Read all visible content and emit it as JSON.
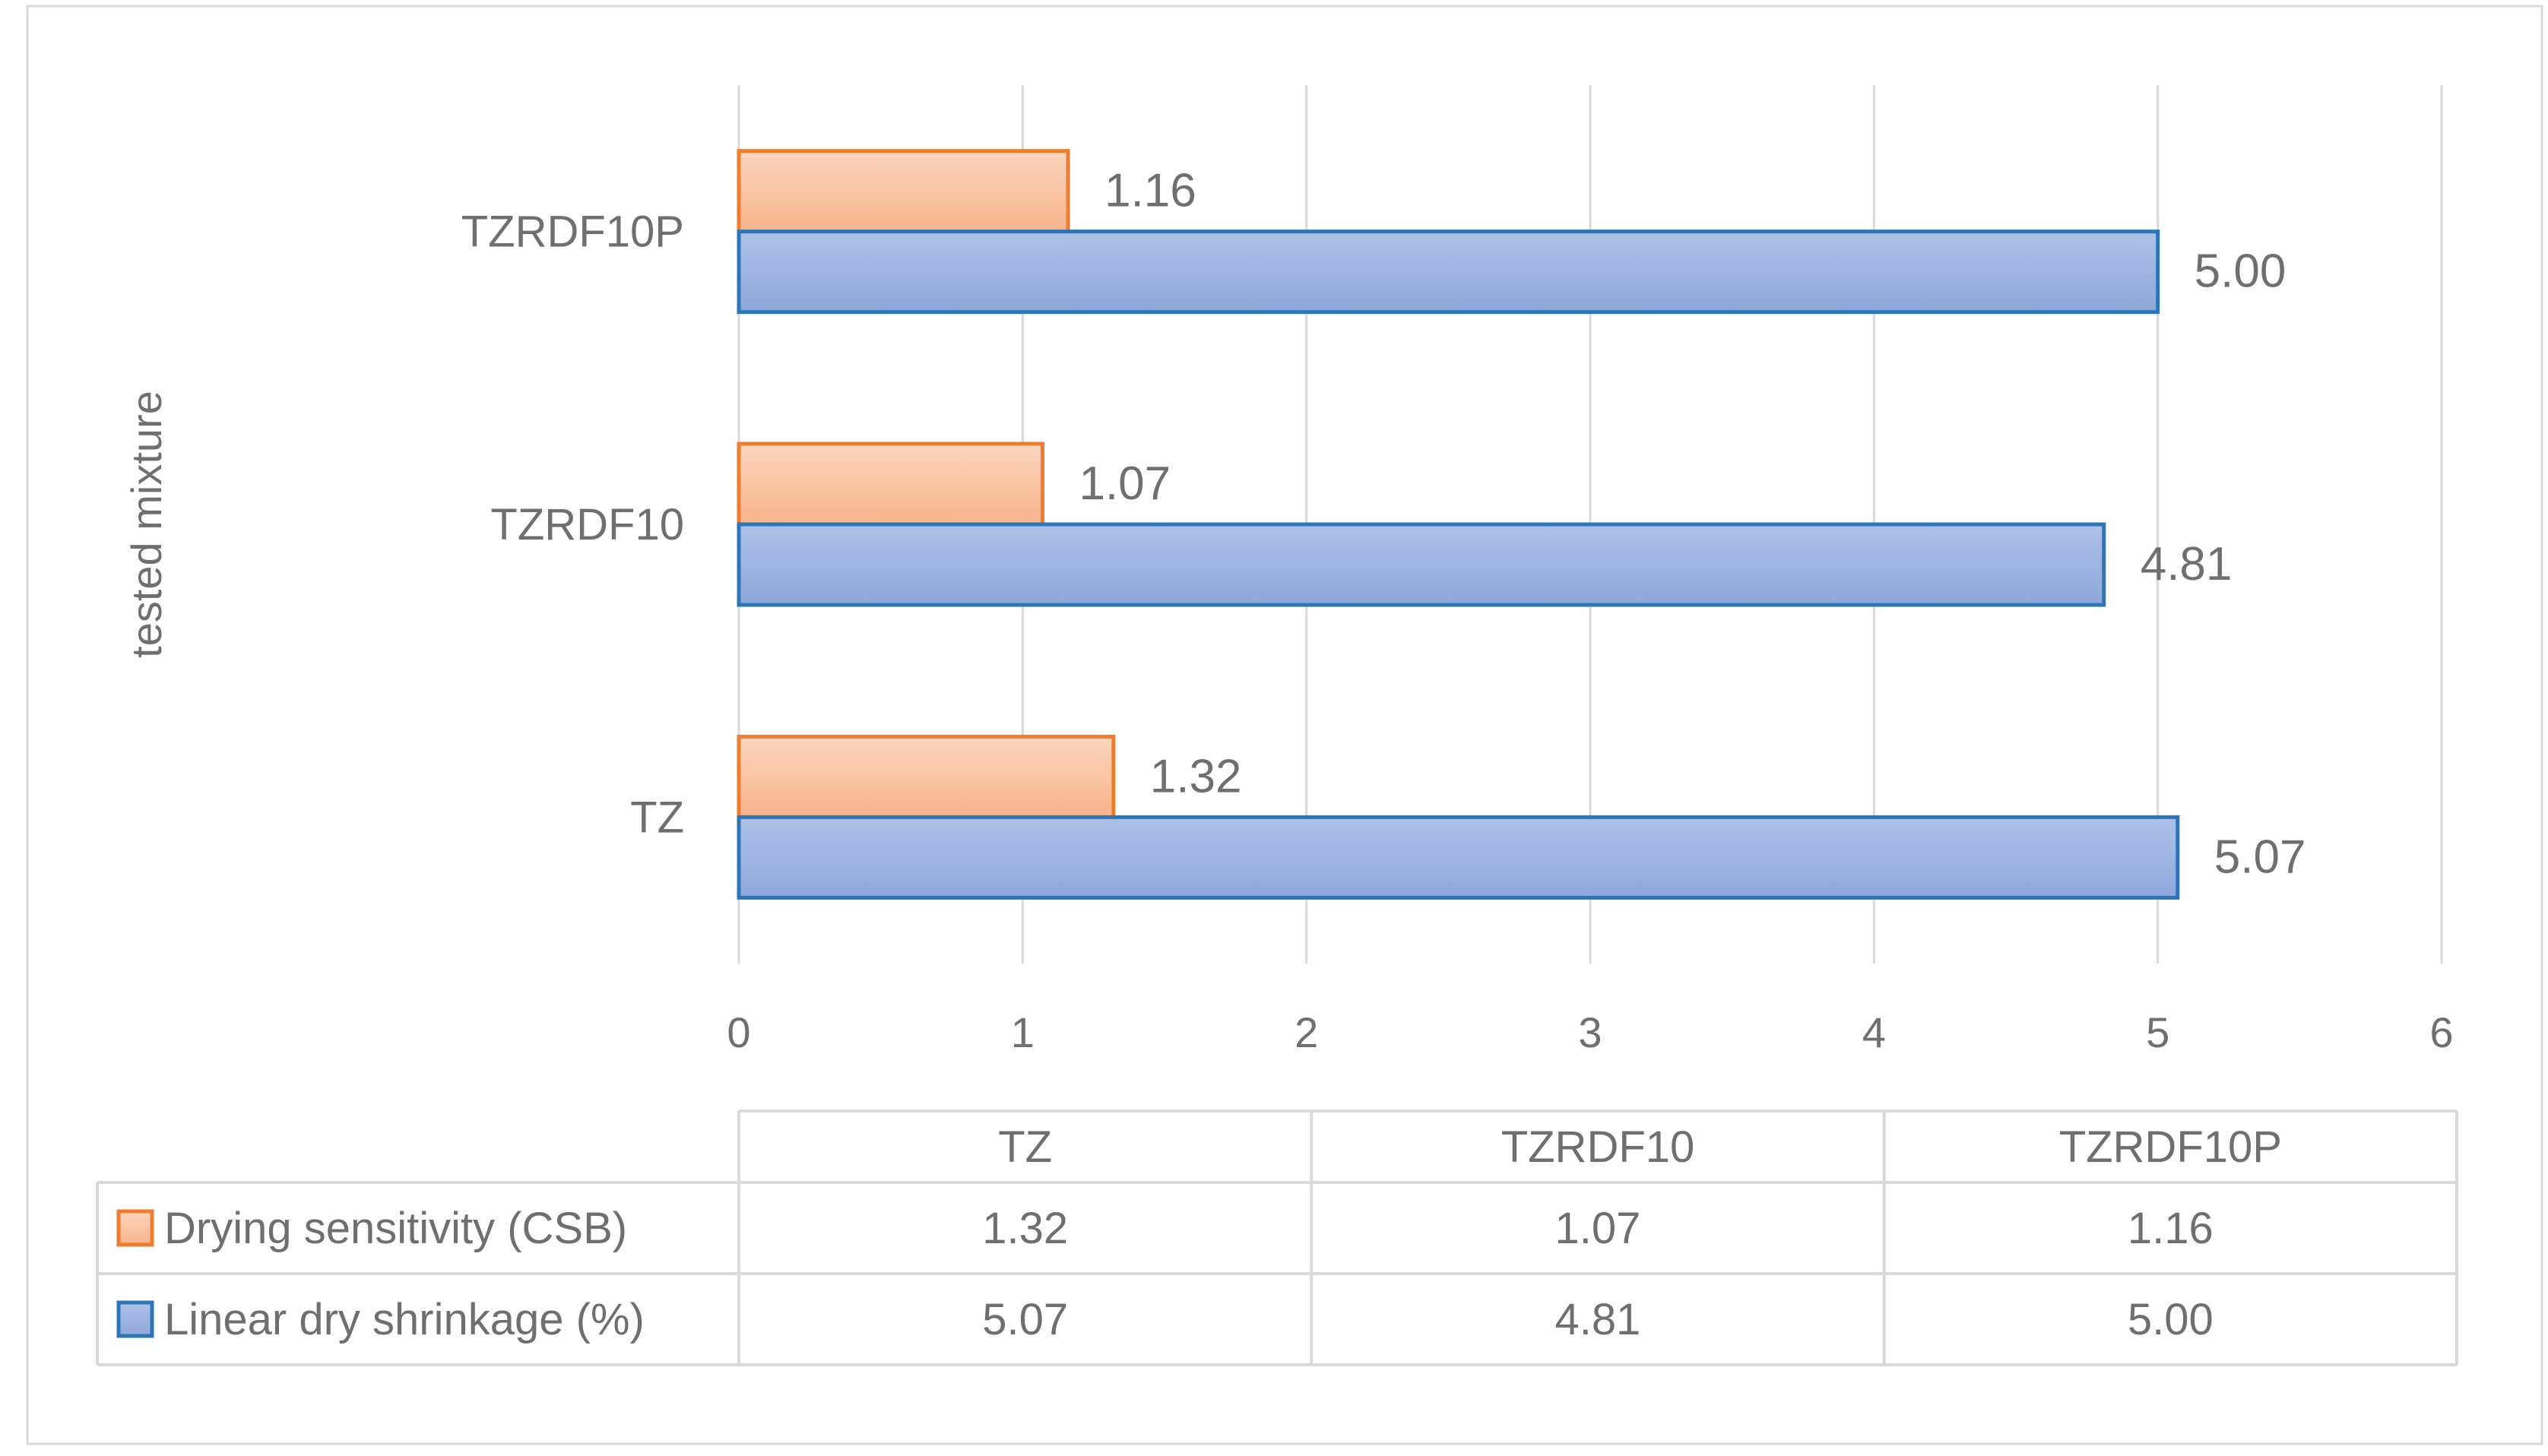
{
  "chart_data": {
    "type": "bar",
    "orientation": "horizontal",
    "categories": [
      "TZ",
      "TZRDF10",
      "TZRDF10P"
    ],
    "series": [
      {
        "name": "Drying sensitivity (CSB)",
        "values": [
          1.32,
          1.07,
          1.16
        ]
      },
      {
        "name": "Linear dry shrinkage (%)",
        "values": [
          5.07,
          4.81,
          5.0
        ]
      }
    ],
    "data_labels": [
      [
        "1.32",
        "1.07",
        "1.16"
      ],
      [
        "5.07",
        "4.81",
        "5.00"
      ]
    ],
    "x_ticks": [
      "0",
      "1",
      "2",
      "3",
      "4",
      "5",
      "6"
    ],
    "xlim": [
      0,
      6
    ],
    "ylabel": "tested mixture",
    "grid": "vertical",
    "legend": "data-table-below",
    "data_table": {
      "header": [
        "TZ",
        "TZRDF10",
        "TZRDF10P"
      ],
      "rows": [
        {
          "label": "Drying sensitivity (CSB)",
          "cells": [
            "1.32",
            "1.07",
            "1.16"
          ]
        },
        {
          "label": "Linear dry shrinkage (%)",
          "cells": [
            "5.07",
            "4.81",
            "5.00"
          ]
        }
      ]
    }
  },
  "colors": {
    "series_1_fill_top": "#fbd6bf",
    "series_1_fill_bottom": "#f8b48a",
    "series_1_stroke": "#ed7d31",
    "series_2_fill_top": "#aec1e8",
    "series_2_fill_bottom": "#8fa8db",
    "series_2_stroke": "#2e75b6",
    "grid": "#d9d9d9",
    "text": "#6f6f6f"
  }
}
